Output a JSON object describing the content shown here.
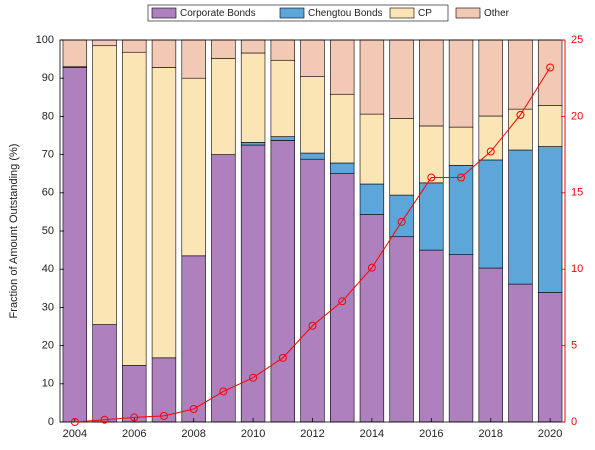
{
  "chart_data": {
    "type": "stacked-bar-line",
    "y_label": "Fraction of Amount Outstanding (%)",
    "categories": [
      2004,
      2005,
      2006,
      2007,
      2008,
      2009,
      2010,
      2011,
      2012,
      2013,
      2014,
      2015,
      2016,
      2017,
      2018,
      2019,
      2020
    ],
    "xticks": [
      2004,
      2006,
      2008,
      2010,
      2012,
      2014,
      2016,
      2018,
      2020
    ],
    "series": [
      {
        "name": "Corporate Bonds",
        "color": "#ae80be",
        "values": [
          92.8,
          25.5,
          14.8,
          16.8,
          43.5,
          70,
          72.5,
          73.7,
          68.8,
          65,
          54.3,
          48.5,
          45,
          43.8,
          40.3,
          36.1,
          33.9
        ]
      },
      {
        "name": "Chengtou Bonds",
        "color": "#5ca6da",
        "values": [
          0,
          0,
          0,
          0,
          0,
          0,
          0.7,
          1,
          1.6,
          2.8,
          8,
          10.9,
          17.6,
          23.4,
          28.3,
          35.1,
          38.2
        ]
      },
      {
        "name": "CP",
        "color": "#fbe5b5",
        "values": [
          0.2,
          73,
          82,
          76,
          46.5,
          25.2,
          23.4,
          20,
          20,
          18,
          18.3,
          20.1,
          14.9,
          10,
          11.5,
          10.7,
          10.8
        ]
      },
      {
        "name": "Other",
        "color": "#f2c9b5",
        "values": [
          7,
          1.5,
          3.2,
          7.2,
          10,
          4.8,
          3.4,
          5.3,
          9.6,
          14.2,
          19.4,
          20.5,
          22.5,
          22.8,
          19.9,
          18.1,
          17.1
        ]
      }
    ],
    "line": {
      "color": "#ff0000",
      "axis": "y2",
      "values": [
        0,
        0.15,
        0.3,
        0.4,
        0.85,
        2,
        2.9,
        4.2,
        6.3,
        7.9,
        10.1,
        13.1,
        16,
        16,
        17.7,
        20.1,
        23.2
      ]
    },
    "ylim": [
      0,
      100
    ],
    "yticks": [
      0,
      10,
      20,
      30,
      40,
      50,
      60,
      70,
      80,
      90,
      100
    ],
    "y2lim": [
      0,
      25
    ],
    "y2ticks": [
      0,
      5,
      10,
      15,
      20,
      25
    ],
    "legend": "top"
  }
}
